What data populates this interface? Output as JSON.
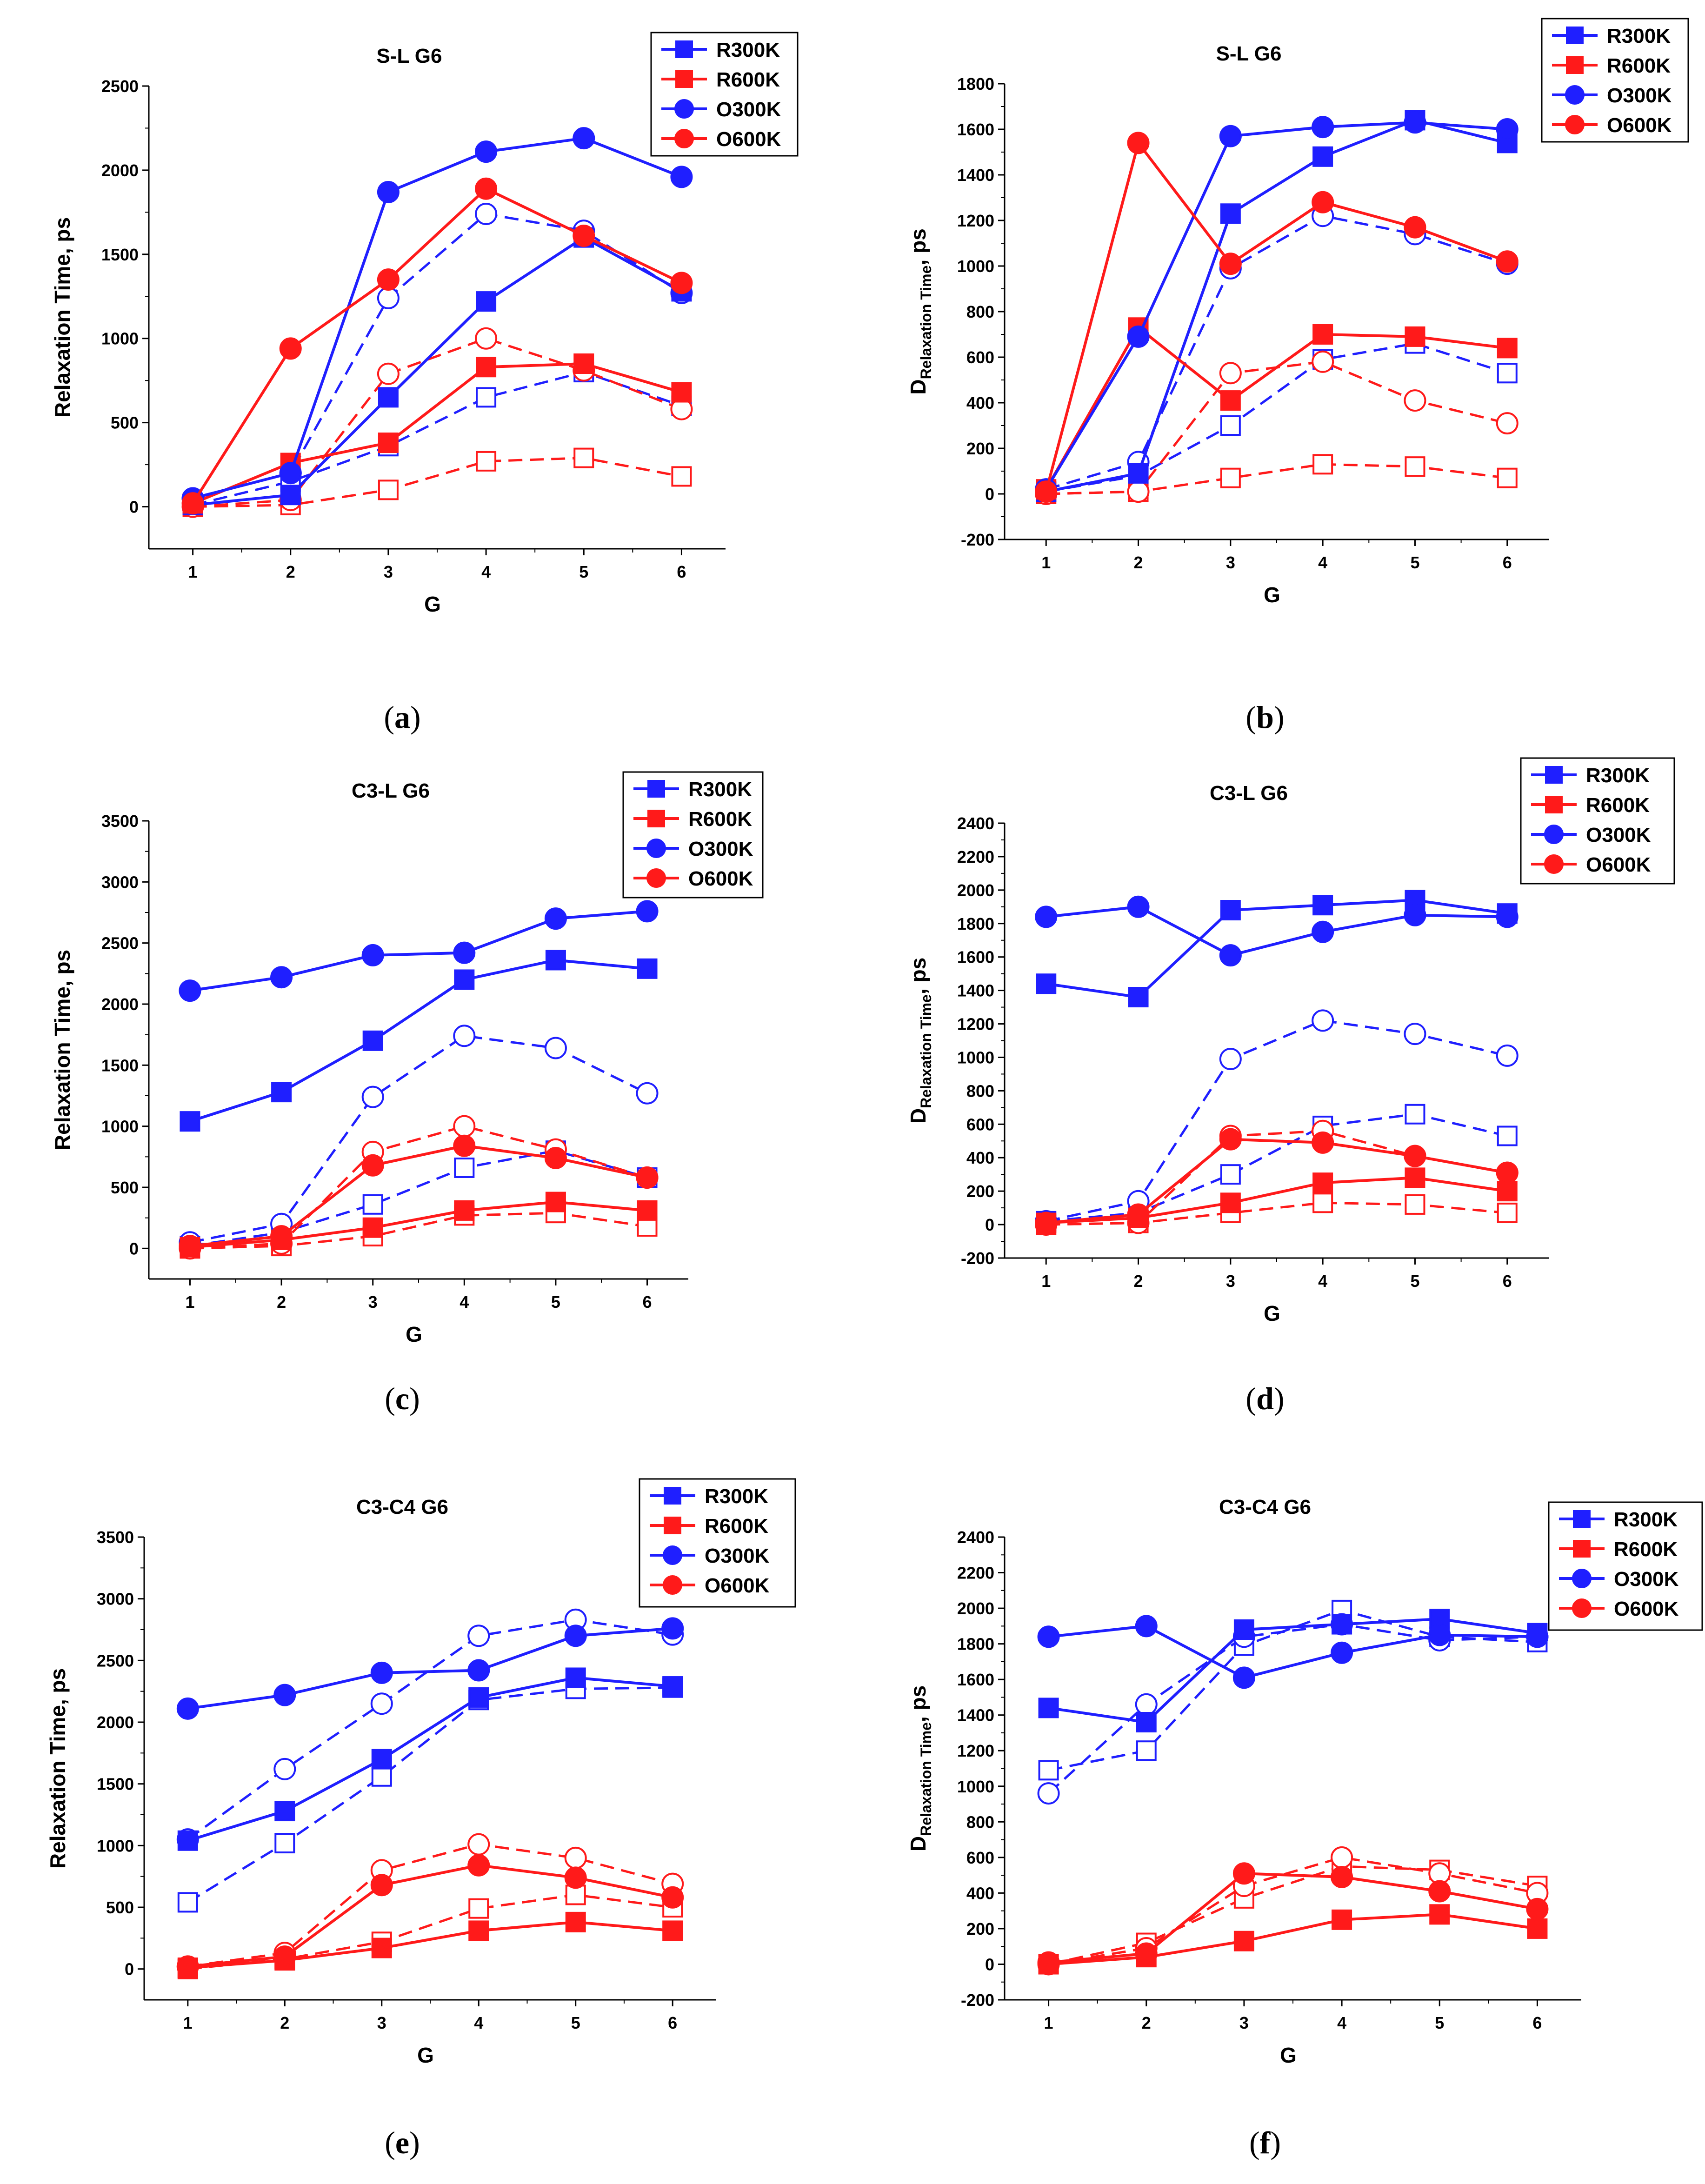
{
  "figure": {
    "panel_captions": [
      "(a)",
      "(b)",
      "(c)",
      "(d)",
      "(e)",
      "(f)"
    ]
  },
  "style": {
    "blue": "#1f1fff",
    "red": "#ff1a1a",
    "axis": "#000000"
  },
  "chart_data": [
    {
      "id": "a",
      "type": "line",
      "title": "S-L G6",
      "xlabel": "G",
      "ylabel": "Relaxation Time, ps",
      "ylabel_sub": "",
      "x": [
        1,
        2,
        3,
        4,
        5,
        6
      ],
      "ylim": [
        -250,
        2500
      ],
      "yticks": [
        0,
        500,
        1000,
        1500,
        2000,
        2500
      ],
      "legend": [
        "R300K",
        "R600K",
        "O300K",
        "O600K"
      ],
      "series": [
        {
          "name": "R300K",
          "marker": "square",
          "fill": "solid",
          "line": "solid",
          "color": "blue",
          "values": [
            10,
            70,
            650,
            1220,
            1600,
            1280
          ]
        },
        {
          "name": "R600K",
          "marker": "square",
          "fill": "solid",
          "line": "solid",
          "color": "red",
          "values": [
            20,
            260,
            380,
            830,
            850,
            680
          ]
        },
        {
          "name": "O300K",
          "marker": "circle",
          "fill": "solid",
          "line": "solid",
          "color": "blue",
          "values": [
            50,
            200,
            1870,
            2110,
            2190,
            1960
          ]
        },
        {
          "name": "O600K",
          "marker": "circle",
          "fill": "solid",
          "line": "solid",
          "color": "red",
          "values": [
            20,
            940,
            1350,
            1890,
            1610,
            1330
          ]
        },
        {
          "name": "R300K (open)",
          "marker": "square",
          "fill": "open",
          "line": "dashed",
          "color": "blue",
          "values": [
            10,
            150,
            360,
            650,
            800,
            600
          ]
        },
        {
          "name": "R600K (open)",
          "marker": "square",
          "fill": "open",
          "line": "dashed",
          "color": "red",
          "values": [
            0,
            10,
            100,
            270,
            290,
            180
          ]
        },
        {
          "name": "O300K (open)",
          "marker": "circle",
          "fill": "open",
          "line": "dashed",
          "color": "blue",
          "values": [
            50,
            200,
            1240,
            1740,
            1640,
            1270
          ]
        },
        {
          "name": "O600K (open)",
          "marker": "circle",
          "fill": "open",
          "line": "dashed",
          "color": "red",
          "values": [
            0,
            40,
            790,
            1000,
            810,
            580
          ]
        }
      ]
    },
    {
      "id": "b",
      "type": "line",
      "title": "S-L G6",
      "xlabel": "G",
      "ylabel": "D",
      "ylabel_sub": "Relaxation Time",
      "ylabel_suffix": ", ps",
      "x": [
        1,
        2,
        3,
        4,
        5,
        6
      ],
      "ylim": [
        -200,
        1800
      ],
      "yticks": [
        -200,
        0,
        200,
        400,
        600,
        800,
        1000,
        1200,
        1400,
        1600,
        1800
      ],
      "legend": [
        "R300K",
        "R600K",
        "O300K",
        "O600K"
      ],
      "series": [
        {
          "name": "R300K",
          "marker": "square",
          "fill": "solid",
          "line": "solid",
          "color": "blue",
          "values": [
            10,
            90,
            1230,
            1480,
            1640,
            1540
          ]
        },
        {
          "name": "R600K",
          "marker": "square",
          "fill": "solid",
          "line": "solid",
          "color": "red",
          "values": [
            20,
            730,
            410,
            700,
            690,
            640
          ]
        },
        {
          "name": "O300K",
          "marker": "circle",
          "fill": "solid",
          "line": "solid",
          "color": "blue",
          "values": [
            20,
            690,
            1570,
            1610,
            1630,
            1600
          ]
        },
        {
          "name": "O600K",
          "marker": "circle",
          "fill": "solid",
          "line": "solid",
          "color": "red",
          "values": [
            10,
            1540,
            1010,
            1280,
            1170,
            1020
          ]
        },
        {
          "name": "R300K (open)",
          "marker": "square",
          "fill": "open",
          "line": "dashed",
          "color": "blue",
          "values": [
            10,
            80,
            300,
            590,
            660,
            530
          ]
        },
        {
          "name": "R600K (open)",
          "marker": "square",
          "fill": "open",
          "line": "dashed",
          "color": "red",
          "values": [
            0,
            10,
            70,
            130,
            120,
            70
          ]
        },
        {
          "name": "O300K (open)",
          "marker": "circle",
          "fill": "open",
          "line": "dashed",
          "color": "blue",
          "values": [
            20,
            140,
            990,
            1220,
            1140,
            1010
          ]
        },
        {
          "name": "O600K (open)",
          "marker": "circle",
          "fill": "open",
          "line": "dashed",
          "color": "red",
          "values": [
            0,
            10,
            530,
            580,
            410,
            310
          ]
        }
      ]
    },
    {
      "id": "c",
      "type": "line",
      "title": "C3-L G6",
      "xlabel": "G",
      "ylabel": "Relaxation Time, ps",
      "ylabel_sub": "",
      "x": [
        1,
        2,
        3,
        4,
        5,
        6
      ],
      "ylim": [
        -250,
        3500
      ],
      "yticks": [
        0,
        500,
        1000,
        1500,
        2000,
        2500,
        3000,
        3500
      ],
      "legend": [
        "R300K",
        "R600K",
        "O300K",
        "O600K"
      ],
      "series": [
        {
          "name": "R300K",
          "marker": "square",
          "fill": "solid",
          "line": "solid",
          "color": "blue",
          "values": [
            1040,
            1280,
            1700,
            2200,
            2360,
            2290
          ]
        },
        {
          "name": "R600K",
          "marker": "square",
          "fill": "solid",
          "line": "solid",
          "color": "red",
          "values": [
            10,
            70,
            170,
            310,
            380,
            310
          ]
        },
        {
          "name": "O300K",
          "marker": "circle",
          "fill": "solid",
          "line": "solid",
          "color": "blue",
          "values": [
            2110,
            2220,
            2400,
            2420,
            2700,
            2760
          ]
        },
        {
          "name": "O600K",
          "marker": "circle",
          "fill": "solid",
          "line": "solid",
          "color": "red",
          "values": [
            20,
            100,
            680,
            840,
            740,
            580
          ]
        },
        {
          "name": "R300K (open)",
          "marker": "square",
          "fill": "open",
          "line": "dashed",
          "color": "blue",
          "values": [
            20,
            130,
            360,
            660,
            800,
            580
          ]
        },
        {
          "name": "R600K (open)",
          "marker": "square",
          "fill": "open",
          "line": "dashed",
          "color": "red",
          "values": [
            0,
            20,
            100,
            270,
            290,
            180
          ]
        },
        {
          "name": "O300K (open)",
          "marker": "circle",
          "fill": "open",
          "line": "dashed",
          "color": "blue",
          "values": [
            50,
            200,
            1240,
            1740,
            1640,
            1270
          ]
        },
        {
          "name": "O600K (open)",
          "marker": "circle",
          "fill": "open",
          "line": "dashed",
          "color": "red",
          "values": [
            0,
            40,
            790,
            1000,
            810,
            580
          ]
        }
      ]
    },
    {
      "id": "d",
      "type": "line",
      "title": "C3-L G6",
      "xlabel": "G",
      "ylabel": "D",
      "ylabel_sub": "Relaxation Time",
      "ylabel_suffix": ", ps",
      "x": [
        1,
        2,
        3,
        4,
        5,
        6
      ],
      "ylim": [
        -200,
        2400
      ],
      "yticks": [
        -200,
        0,
        200,
        400,
        600,
        800,
        1000,
        1200,
        1400,
        1600,
        1800,
        2000,
        2200,
        2400
      ],
      "legend": [
        "R300K",
        "R600K",
        "O300K",
        "O600K"
      ],
      "series": [
        {
          "name": "R300K",
          "marker": "square",
          "fill": "solid",
          "line": "solid",
          "color": "blue",
          "values": [
            1440,
            1360,
            1880,
            1910,
            1940,
            1860
          ]
        },
        {
          "name": "R600K",
          "marker": "square",
          "fill": "solid",
          "line": "solid",
          "color": "red",
          "values": [
            10,
            40,
            130,
            250,
            280,
            200
          ]
        },
        {
          "name": "O300K",
          "marker": "circle",
          "fill": "solid",
          "line": "solid",
          "color": "blue",
          "values": [
            1840,
            1900,
            1610,
            1750,
            1850,
            1840
          ]
        },
        {
          "name": "O600K",
          "marker": "circle",
          "fill": "solid",
          "line": "solid",
          "color": "red",
          "values": [
            10,
            60,
            510,
            490,
            410,
            310
          ]
        },
        {
          "name": "R300K (open)",
          "marker": "square",
          "fill": "open",
          "line": "dashed",
          "color": "blue",
          "values": [
            20,
            70,
            300,
            590,
            660,
            530
          ]
        },
        {
          "name": "R600K (open)",
          "marker": "square",
          "fill": "open",
          "line": "dashed",
          "color": "red",
          "values": [
            0,
            10,
            70,
            130,
            120,
            70
          ]
        },
        {
          "name": "O300K (open)",
          "marker": "circle",
          "fill": "open",
          "line": "dashed",
          "color": "blue",
          "values": [
            20,
            140,
            990,
            1220,
            1140,
            1010
          ]
        },
        {
          "name": "O600K (open)",
          "marker": "circle",
          "fill": "open",
          "line": "dashed",
          "color": "red",
          "values": [
            0,
            10,
            530,
            560,
            410,
            310
          ]
        }
      ]
    },
    {
      "id": "e",
      "type": "line",
      "title": "C3-C4 G6",
      "xlabel": "G",
      "ylabel": "Relaxation Time, ps",
      "ylabel_sub": "",
      "x": [
        1,
        2,
        3,
        4,
        5,
        6
      ],
      "ylim": [
        -250,
        3500
      ],
      "yticks": [
        0,
        500,
        1000,
        1500,
        2000,
        2500,
        3000,
        3500
      ],
      "legend": [
        "R300K",
        "R600K",
        "O300K",
        "O600K"
      ],
      "series": [
        {
          "name": "R300K",
          "marker": "square",
          "fill": "solid",
          "line": "solid",
          "color": "blue",
          "values": [
            1040,
            1280,
            1700,
            2200,
            2360,
            2290
          ]
        },
        {
          "name": "R600K",
          "marker": "square",
          "fill": "solid",
          "line": "solid",
          "color": "red",
          "values": [
            10,
            70,
            170,
            310,
            380,
            310
          ]
        },
        {
          "name": "O300K",
          "marker": "circle",
          "fill": "solid",
          "line": "solid",
          "color": "blue",
          "values": [
            2110,
            2220,
            2400,
            2420,
            2700,
            2760
          ]
        },
        {
          "name": "O600K",
          "marker": "circle",
          "fill": "solid",
          "line": "solid",
          "color": "red",
          "values": [
            20,
            100,
            680,
            840,
            740,
            580
          ]
        },
        {
          "name": "R300K (open)",
          "marker": "square",
          "fill": "open",
          "line": "dashed",
          "color": "blue",
          "values": [
            540,
            1020,
            1560,
            2180,
            2270,
            2280
          ]
        },
        {
          "name": "R600K (open)",
          "marker": "square",
          "fill": "open",
          "line": "dashed",
          "color": "red",
          "values": [
            0,
            80,
            220,
            490,
            600,
            500
          ]
        },
        {
          "name": "O300K (open)",
          "marker": "circle",
          "fill": "open",
          "line": "dashed",
          "color": "blue",
          "values": [
            1050,
            1620,
            2150,
            2700,
            2830,
            2710
          ]
        },
        {
          "name": "O600K (open)",
          "marker": "circle",
          "fill": "open",
          "line": "dashed",
          "color": "red",
          "values": [
            20,
            130,
            800,
            1010,
            900,
            690
          ]
        }
      ]
    },
    {
      "id": "f",
      "type": "line",
      "title": "C3-C4 G6",
      "xlabel": "G",
      "ylabel": "D",
      "ylabel_sub": "Relaxation Time",
      "ylabel_suffix": ", ps",
      "x": [
        1,
        2,
        3,
        4,
        5,
        6
      ],
      "ylim": [
        -200,
        2400
      ],
      "yticks": [
        -200,
        0,
        200,
        400,
        600,
        800,
        1000,
        1200,
        1400,
        1600,
        1800,
        2000,
        2200,
        2400
      ],
      "legend": [
        "R300K",
        "R600K",
        "O300K",
        "O600K"
      ],
      "series": [
        {
          "name": "R300K",
          "marker": "square",
          "fill": "solid",
          "line": "solid",
          "color": "blue",
          "values": [
            1440,
            1360,
            1880,
            1910,
            1940,
            1860
          ]
        },
        {
          "name": "R600K",
          "marker": "square",
          "fill": "solid",
          "line": "solid",
          "color": "red",
          "values": [
            0,
            40,
            130,
            250,
            280,
            200
          ]
        },
        {
          "name": "O300K",
          "marker": "circle",
          "fill": "solid",
          "line": "solid",
          "color": "blue",
          "values": [
            1840,
            1900,
            1610,
            1750,
            1850,
            1840
          ]
        },
        {
          "name": "O600K",
          "marker": "circle",
          "fill": "solid",
          "line": "solid",
          "color": "red",
          "values": [
            10,
            60,
            510,
            490,
            410,
            310
          ]
        },
        {
          "name": "R300K (open)",
          "marker": "square",
          "fill": "open",
          "line": "dashed",
          "color": "blue",
          "values": [
            1090,
            1200,
            1790,
            1990,
            1840,
            1810
          ]
        },
        {
          "name": "R600K (open)",
          "marker": "square",
          "fill": "open",
          "line": "dashed",
          "color": "red",
          "values": [
            0,
            120,
            370,
            550,
            530,
            440
          ]
        },
        {
          "name": "O300K (open)",
          "marker": "circle",
          "fill": "open",
          "line": "dashed",
          "color": "blue",
          "values": [
            960,
            1460,
            1840,
            1910,
            1820,
            1840
          ]
        },
        {
          "name": "O600K (open)",
          "marker": "circle",
          "fill": "open",
          "line": "dashed",
          "color": "red",
          "values": [
            0,
            90,
            440,
            600,
            510,
            400
          ]
        }
      ]
    }
  ]
}
